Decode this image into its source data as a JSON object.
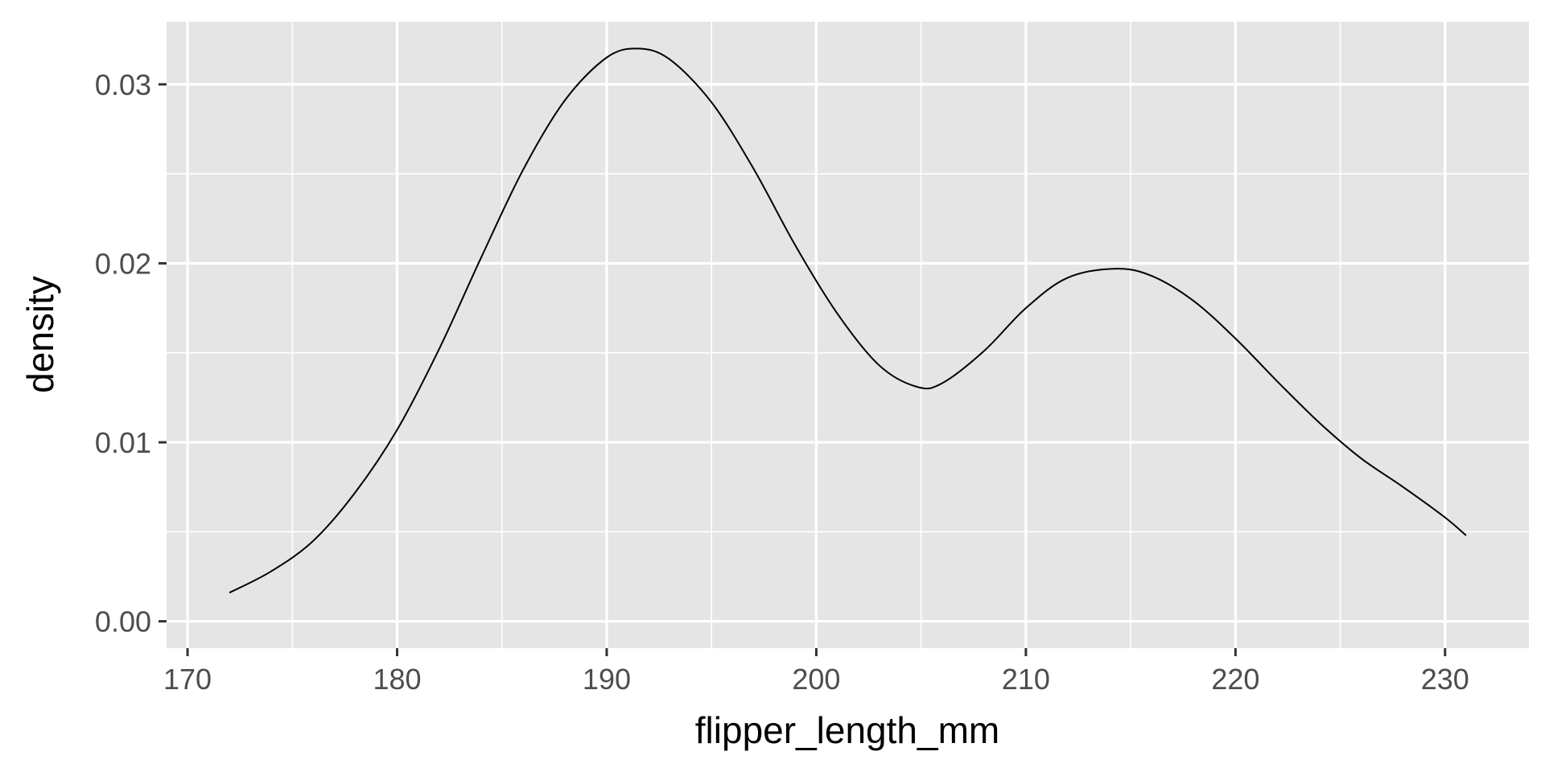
{
  "chart_data": {
    "type": "line",
    "title": "",
    "xlabel": "flipper_length_mm",
    "ylabel": "density",
    "xlim": [
      169,
      234
    ],
    "ylim": [
      -0.0015,
      0.0335
    ],
    "x_ticks": [
      170,
      180,
      190,
      200,
      210,
      220,
      230
    ],
    "y_ticks": [
      0.0,
      0.01,
      0.02,
      0.03
    ],
    "x_tick_labels": [
      "170",
      "180",
      "190",
      "200",
      "210",
      "220",
      "230"
    ],
    "y_tick_labels": [
      "0.00",
      "0.01",
      "0.02",
      "0.03"
    ],
    "grid": true,
    "colors": {
      "panel": "#e5e5e5",
      "grid": "#ffffff",
      "line": "#000000",
      "tick": "#333333"
    },
    "series": [
      {
        "points": [
          [
            172,
            0.0016
          ],
          [
            174,
            0.0028
          ],
          [
            176,
            0.0045
          ],
          [
            178,
            0.0072
          ],
          [
            180,
            0.0107
          ],
          [
            182,
            0.0152
          ],
          [
            184,
            0.0203
          ],
          [
            186,
            0.0252
          ],
          [
            188,
            0.0291
          ],
          [
            190,
            0.0315
          ],
          [
            191.5,
            0.032
          ],
          [
            193,
            0.0314
          ],
          [
            195,
            0.029
          ],
          [
            197,
            0.0253
          ],
          [
            199,
            0.021
          ],
          [
            201,
            0.0172
          ],
          [
            203,
            0.0143
          ],
          [
            204.8,
            0.0131
          ],
          [
            206,
            0.0133
          ],
          [
            208,
            0.0151
          ],
          [
            210,
            0.0175
          ],
          [
            212,
            0.0192
          ],
          [
            214.3,
            0.0197
          ],
          [
            216,
            0.0193
          ],
          [
            218,
            0.0179
          ],
          [
            220,
            0.0158
          ],
          [
            222,
            0.0134
          ],
          [
            224,
            0.0111
          ],
          [
            226,
            0.0091
          ],
          [
            228,
            0.0075
          ],
          [
            230,
            0.0058
          ],
          [
            231,
            0.0048
          ]
        ]
      }
    ]
  }
}
